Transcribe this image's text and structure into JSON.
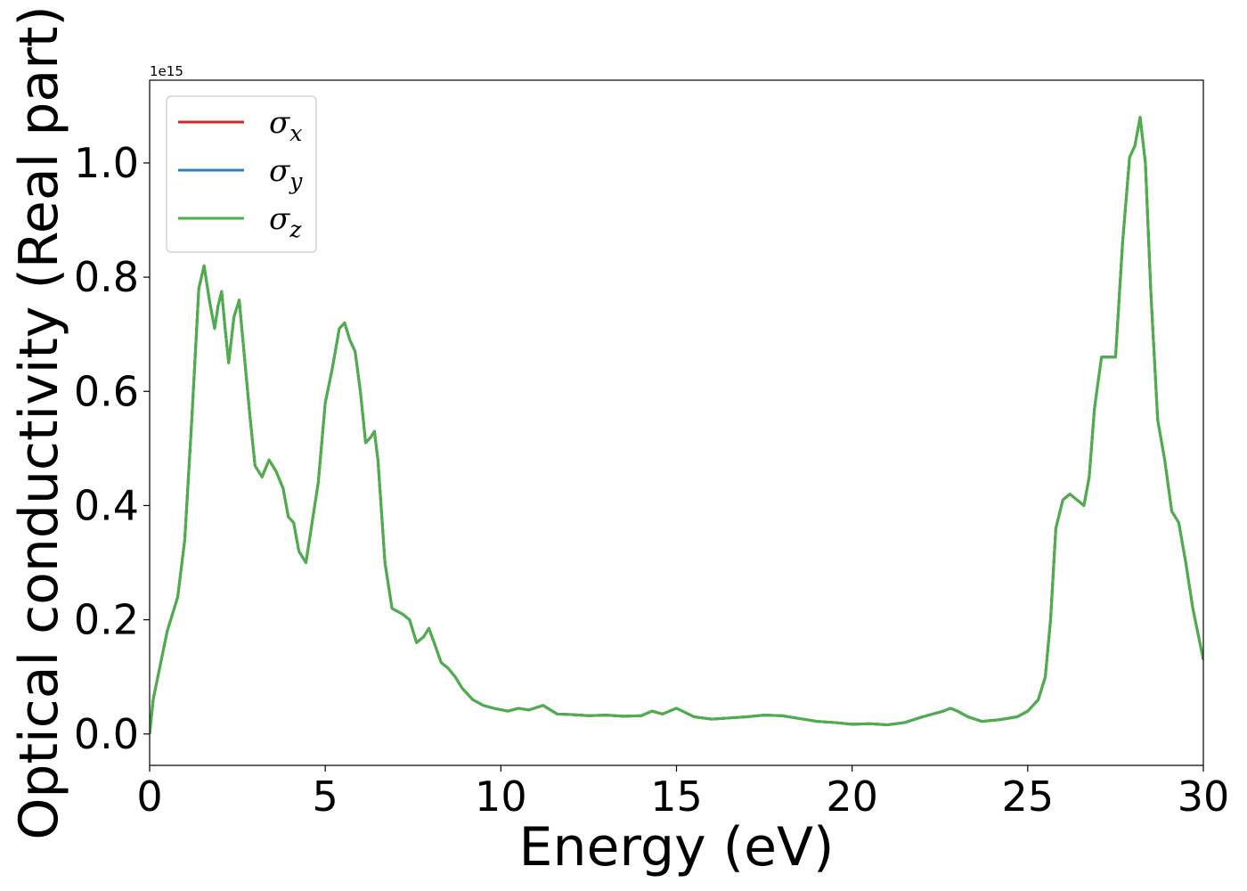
{
  "chart_data": {
    "type": "line",
    "xlabel": "Energy (eV)",
    "ylabel": "Optical conductivity (Real part)",
    "y_offset_text": "1e15",
    "xlim": [
      0,
      30
    ],
    "ylim": [
      -0.055,
      1.145
    ],
    "x_ticks": [
      0,
      5,
      10,
      15,
      20,
      25,
      30
    ],
    "x_tick_labels": [
      "0",
      "5",
      "10",
      "15",
      "20",
      "25",
      "30"
    ],
    "y_ticks": [
      0.0,
      0.2,
      0.4,
      0.6,
      0.8,
      1.0
    ],
    "y_tick_labels": [
      "0.0",
      "0.2",
      "0.4",
      "0.6",
      "0.8",
      "1.0"
    ],
    "grid": false,
    "legend_position": "top-left",
    "series": [
      {
        "name": "σ",
        "subscript": "x",
        "color": "#d62728",
        "x": [
          0,
          0.1,
          0.3,
          0.5,
          0.8,
          1.0,
          1.2,
          1.4,
          1.55,
          1.7,
          1.85,
          1.95,
          2.05,
          2.15,
          2.25,
          2.4,
          2.55,
          2.7,
          2.85,
          3.0,
          3.2,
          3.4,
          3.6,
          3.8,
          3.95,
          4.1,
          4.25,
          4.45,
          4.6,
          4.8,
          5.0,
          5.2,
          5.4,
          5.55,
          5.7,
          5.85,
          6.0,
          6.15,
          6.3,
          6.4,
          6.5,
          6.7,
          6.9,
          7.2,
          7.4,
          7.6,
          7.8,
          7.95,
          8.1,
          8.3,
          8.5,
          8.7,
          8.9,
          9.2,
          9.5,
          9.8,
          10.2,
          10.5,
          10.8,
          11.2,
          11.6,
          12.0,
          12.5,
          13.0,
          13.5,
          14.0,
          14.3,
          14.6,
          15.0,
          15.5,
          16.0,
          16.5,
          17.0,
          17.5,
          18.0,
          18.5,
          19.0,
          19.5,
          20.0,
          20.5,
          21.0,
          21.5,
          22.0,
          22.3,
          22.6,
          22.8,
          23.0,
          23.3,
          23.7,
          24.2,
          24.7,
          25.0,
          25.3,
          25.5,
          25.65,
          25.8,
          26.0,
          26.2,
          26.4,
          26.6,
          26.75,
          26.9,
          27.1,
          27.3,
          27.5,
          27.7,
          27.9,
          28.05,
          28.2,
          28.35,
          28.5,
          28.7,
          28.9,
          29.1,
          29.3,
          29.5,
          29.7,
          30.0
        ],
        "y": [
          0.0,
          0.06,
          0.12,
          0.18,
          0.24,
          0.34,
          0.55,
          0.78,
          0.82,
          0.76,
          0.71,
          0.75,
          0.775,
          0.71,
          0.65,
          0.73,
          0.76,
          0.66,
          0.56,
          0.47,
          0.45,
          0.48,
          0.46,
          0.43,
          0.38,
          0.37,
          0.32,
          0.3,
          0.36,
          0.44,
          0.58,
          0.64,
          0.71,
          0.72,
          0.69,
          0.67,
          0.6,
          0.51,
          0.52,
          0.53,
          0.48,
          0.3,
          0.22,
          0.21,
          0.2,
          0.16,
          0.17,
          0.185,
          0.16,
          0.125,
          0.115,
          0.1,
          0.08,
          0.06,
          0.05,
          0.045,
          0.04,
          0.045,
          0.042,
          0.05,
          0.035,
          0.034,
          0.032,
          0.033,
          0.031,
          0.032,
          0.04,
          0.035,
          0.045,
          0.03,
          0.026,
          0.028,
          0.03,
          0.033,
          0.032,
          0.027,
          0.022,
          0.02,
          0.017,
          0.018,
          0.016,
          0.02,
          0.03,
          0.035,
          0.04,
          0.045,
          0.04,
          0.03,
          0.022,
          0.025,
          0.03,
          0.04,
          0.06,
          0.1,
          0.2,
          0.36,
          0.41,
          0.42,
          0.41,
          0.4,
          0.45,
          0.57,
          0.66,
          0.66,
          0.66,
          0.86,
          1.01,
          1.03,
          1.08,
          1.0,
          0.78,
          0.55,
          0.48,
          0.39,
          0.37,
          0.3,
          0.22,
          0.13
        ]
      },
      {
        "name": "σ",
        "subscript": "y",
        "color": "#377eb8",
        "x": [
          0,
          0.1,
          0.3,
          0.5,
          0.8,
          1.0,
          1.2,
          1.4,
          1.55,
          1.7,
          1.85,
          1.95,
          2.05,
          2.15,
          2.25,
          2.4,
          2.55,
          2.7,
          2.85,
          3.0,
          3.2,
          3.4,
          3.6,
          3.8,
          3.95,
          4.1,
          4.25,
          4.45,
          4.6,
          4.8,
          5.0,
          5.2,
          5.4,
          5.55,
          5.7,
          5.85,
          6.0,
          6.15,
          6.3,
          6.4,
          6.5,
          6.7,
          6.9,
          7.2,
          7.4,
          7.6,
          7.8,
          7.95,
          8.1,
          8.3,
          8.5,
          8.7,
          8.9,
          9.2,
          9.5,
          9.8,
          10.2,
          10.5,
          10.8,
          11.2,
          11.6,
          12.0,
          12.5,
          13.0,
          13.5,
          14.0,
          14.3,
          14.6,
          15.0,
          15.5,
          16.0,
          16.5,
          17.0,
          17.5,
          18.0,
          18.5,
          19.0,
          19.5,
          20.0,
          20.5,
          21.0,
          21.5,
          22.0,
          22.3,
          22.6,
          22.8,
          23.0,
          23.3,
          23.7,
          24.2,
          24.7,
          25.0,
          25.3,
          25.5,
          25.65,
          25.8,
          26.0,
          26.2,
          26.4,
          26.6,
          26.75,
          26.9,
          27.1,
          27.3,
          27.5,
          27.7,
          27.9,
          28.05,
          28.2,
          28.35,
          28.5,
          28.7,
          28.9,
          29.1,
          29.3,
          29.5,
          29.7,
          30.0
        ],
        "y": [
          0.0,
          0.06,
          0.12,
          0.18,
          0.24,
          0.34,
          0.55,
          0.78,
          0.82,
          0.76,
          0.71,
          0.75,
          0.775,
          0.71,
          0.65,
          0.73,
          0.76,
          0.66,
          0.56,
          0.47,
          0.45,
          0.48,
          0.46,
          0.43,
          0.38,
          0.37,
          0.32,
          0.3,
          0.36,
          0.44,
          0.58,
          0.64,
          0.71,
          0.72,
          0.69,
          0.67,
          0.6,
          0.51,
          0.52,
          0.53,
          0.48,
          0.3,
          0.22,
          0.21,
          0.2,
          0.16,
          0.17,
          0.185,
          0.16,
          0.125,
          0.115,
          0.1,
          0.08,
          0.06,
          0.05,
          0.045,
          0.04,
          0.045,
          0.042,
          0.05,
          0.035,
          0.034,
          0.032,
          0.033,
          0.031,
          0.032,
          0.04,
          0.035,
          0.045,
          0.03,
          0.026,
          0.028,
          0.03,
          0.033,
          0.032,
          0.027,
          0.022,
          0.02,
          0.017,
          0.018,
          0.016,
          0.02,
          0.03,
          0.035,
          0.04,
          0.045,
          0.04,
          0.03,
          0.022,
          0.025,
          0.03,
          0.04,
          0.06,
          0.1,
          0.2,
          0.36,
          0.41,
          0.42,
          0.41,
          0.4,
          0.45,
          0.57,
          0.66,
          0.66,
          0.66,
          0.86,
          1.01,
          1.03,
          1.08,
          1.0,
          0.78,
          0.55,
          0.48,
          0.39,
          0.37,
          0.3,
          0.22,
          0.13
        ]
      },
      {
        "name": "σ",
        "subscript": "z",
        "color": "#4daf4a",
        "x": [
          0,
          0.1,
          0.3,
          0.5,
          0.8,
          1.0,
          1.2,
          1.4,
          1.55,
          1.7,
          1.85,
          1.95,
          2.05,
          2.15,
          2.25,
          2.4,
          2.55,
          2.7,
          2.85,
          3.0,
          3.2,
          3.4,
          3.6,
          3.8,
          3.95,
          4.1,
          4.25,
          4.45,
          4.6,
          4.8,
          5.0,
          5.2,
          5.4,
          5.55,
          5.7,
          5.85,
          6.0,
          6.15,
          6.3,
          6.4,
          6.5,
          6.7,
          6.9,
          7.2,
          7.4,
          7.6,
          7.8,
          7.95,
          8.1,
          8.3,
          8.5,
          8.7,
          8.9,
          9.2,
          9.5,
          9.8,
          10.2,
          10.5,
          10.8,
          11.2,
          11.6,
          12.0,
          12.5,
          13.0,
          13.5,
          14.0,
          14.3,
          14.6,
          15.0,
          15.5,
          16.0,
          16.5,
          17.0,
          17.5,
          18.0,
          18.5,
          19.0,
          19.5,
          20.0,
          20.5,
          21.0,
          21.5,
          22.0,
          22.3,
          22.6,
          22.8,
          23.0,
          23.3,
          23.7,
          24.2,
          24.7,
          25.0,
          25.3,
          25.5,
          25.65,
          25.8,
          26.0,
          26.2,
          26.4,
          26.6,
          26.75,
          26.9,
          27.1,
          27.3,
          27.5,
          27.7,
          27.9,
          28.05,
          28.2,
          28.35,
          28.5,
          28.7,
          28.9,
          29.1,
          29.3,
          29.5,
          29.7,
          30.0
        ],
        "y": [
          0.0,
          0.06,
          0.12,
          0.18,
          0.24,
          0.34,
          0.55,
          0.78,
          0.82,
          0.76,
          0.71,
          0.75,
          0.775,
          0.71,
          0.65,
          0.73,
          0.76,
          0.66,
          0.56,
          0.47,
          0.45,
          0.48,
          0.46,
          0.43,
          0.38,
          0.37,
          0.32,
          0.3,
          0.36,
          0.44,
          0.58,
          0.64,
          0.71,
          0.72,
          0.69,
          0.67,
          0.6,
          0.51,
          0.52,
          0.53,
          0.48,
          0.3,
          0.22,
          0.21,
          0.2,
          0.16,
          0.17,
          0.185,
          0.16,
          0.125,
          0.115,
          0.1,
          0.08,
          0.06,
          0.05,
          0.045,
          0.04,
          0.045,
          0.042,
          0.05,
          0.035,
          0.034,
          0.032,
          0.033,
          0.031,
          0.032,
          0.04,
          0.035,
          0.045,
          0.03,
          0.026,
          0.028,
          0.03,
          0.033,
          0.032,
          0.027,
          0.022,
          0.02,
          0.017,
          0.018,
          0.016,
          0.02,
          0.03,
          0.035,
          0.04,
          0.045,
          0.04,
          0.03,
          0.022,
          0.025,
          0.03,
          0.04,
          0.06,
          0.1,
          0.2,
          0.36,
          0.41,
          0.42,
          0.41,
          0.4,
          0.45,
          0.57,
          0.66,
          0.66,
          0.66,
          0.86,
          1.01,
          1.03,
          1.08,
          1.0,
          0.78,
          0.55,
          0.48,
          0.39,
          0.37,
          0.3,
          0.22,
          0.13
        ]
      }
    ]
  }
}
